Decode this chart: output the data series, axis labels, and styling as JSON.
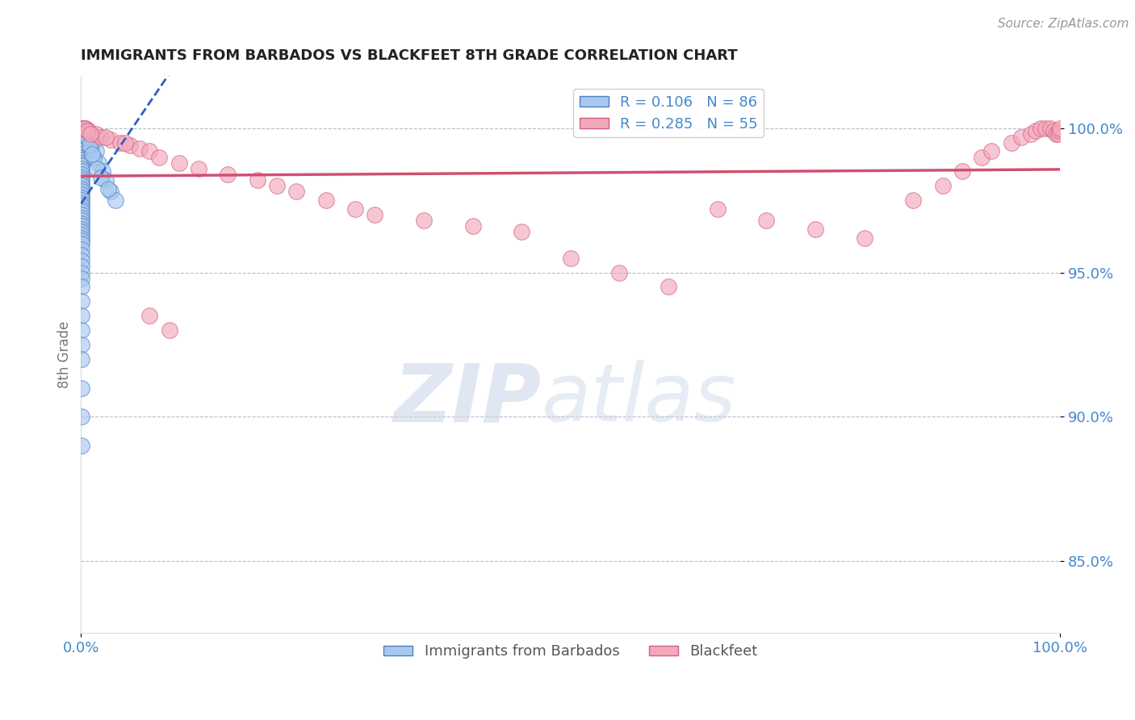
{
  "title": "IMMIGRANTS FROM BARBADOS VS BLACKFEET 8TH GRADE CORRELATION CHART",
  "source": "Source: ZipAtlas.com",
  "ylabel": "8th Grade",
  "x_label_bottom_left": "0.0%",
  "x_label_bottom_right": "100.0%",
  "y_ticks": [
    85.0,
    90.0,
    95.0,
    100.0
  ],
  "y_tick_labels": [
    "85.0%",
    "90.0%",
    "95.0%",
    "100.0%"
  ],
  "x_min": 0.0,
  "x_max": 100.0,
  "y_min": 82.5,
  "y_max": 101.8,
  "legend_blue_label": "Immigrants from Barbados",
  "legend_pink_label": "Blackfeet",
  "R_blue": 0.106,
  "N_blue": 86,
  "R_pink": 0.285,
  "N_pink": 55,
  "blue_color": "#A8C8F0",
  "pink_color": "#F4A8BC",
  "blue_edge_color": "#5080C0",
  "pink_edge_color": "#D06080",
  "blue_line_color": "#3060C0",
  "pink_line_color": "#D05070",
  "watermark_zip_color": "#C8D4E8",
  "watermark_atlas_color": "#C8D4E8",
  "title_color": "#222222",
  "axis_label_color": "#4488CC",
  "blue_scatter_x": [
    0.05,
    0.05,
    0.05,
    0.05,
    0.05,
    0.05,
    0.05,
    0.05,
    0.05,
    0.05,
    0.05,
    0.05,
    0.05,
    0.05,
    0.05,
    0.05,
    0.05,
    0.05,
    0.05,
    0.05,
    0.05,
    0.05,
    0.05,
    0.05,
    0.05,
    0.05,
    0.05,
    0.05,
    0.05,
    0.05,
    0.05,
    0.05,
    0.05,
    0.05,
    0.05,
    0.05,
    0.05,
    0.05,
    0.05,
    0.05,
    0.05,
    0.05,
    0.05,
    0.05,
    0.05,
    0.05,
    0.05,
    0.05,
    0.05,
    0.05,
    0.05,
    0.05,
    0.05,
    0.05,
    0.05,
    0.05,
    0.05,
    0.05,
    0.05,
    0.05,
    0.05,
    0.05,
    0.05,
    0.05,
    0.05,
    0.05,
    0.05,
    0.05,
    0.05,
    0.05,
    1.2,
    1.5,
    1.8,
    2.2,
    2.5,
    3.0,
    3.5,
    0.8,
    1.0,
    1.3,
    1.6,
    2.0,
    2.8,
    0.6,
    0.9,
    1.1
  ],
  "blue_scatter_y": [
    100.0,
    100.0,
    99.9,
    99.9,
    99.8,
    99.8,
    99.7,
    99.7,
    99.6,
    99.6,
    99.5,
    99.5,
    99.4,
    99.4,
    99.3,
    99.3,
    99.2,
    99.2,
    99.1,
    99.1,
    99.0,
    99.0,
    98.9,
    98.9,
    98.8,
    98.8,
    98.7,
    98.7,
    98.6,
    98.5,
    98.4,
    98.3,
    98.2,
    98.1,
    98.0,
    97.9,
    97.8,
    97.7,
    97.6,
    97.5,
    97.4,
    97.3,
    97.2,
    97.1,
    97.0,
    96.9,
    96.8,
    96.7,
    96.6,
    96.5,
    96.4,
    96.3,
    96.2,
    96.1,
    96.0,
    95.8,
    95.6,
    95.4,
    95.2,
    95.0,
    94.8,
    94.5,
    94.0,
    93.5,
    93.0,
    92.5,
    92.0,
    91.0,
    90.0,
    89.0,
    99.5,
    99.2,
    98.8,
    98.5,
    98.2,
    97.8,
    97.5,
    99.6,
    99.3,
    99.0,
    98.6,
    98.3,
    97.9,
    99.7,
    99.4,
    99.1
  ],
  "pink_scatter_x": [
    0.3,
    0.5,
    0.8,
    1.5,
    2.0,
    3.0,
    4.0,
    5.0,
    6.0,
    7.0,
    8.0,
    10.0,
    12.0,
    15.0,
    18.0,
    20.0,
    22.0,
    25.0,
    28.0,
    30.0,
    35.0,
    40.0,
    45.0,
    50.0,
    55.0,
    60.0,
    65.0,
    70.0,
    75.0,
    80.0,
    85.0,
    88.0,
    90.0,
    92.0,
    93.0,
    95.0,
    96.0,
    97.0,
    97.5,
    98.0,
    98.5,
    99.0,
    99.3,
    99.6,
    99.8,
    99.9,
    100.0,
    0.2,
    0.4,
    0.6,
    1.0,
    2.5,
    4.5,
    7.0,
    9.0
  ],
  "pink_scatter_y": [
    100.0,
    100.0,
    99.9,
    99.8,
    99.7,
    99.6,
    99.5,
    99.4,
    99.3,
    99.2,
    99.0,
    98.8,
    98.6,
    98.4,
    98.2,
    98.0,
    97.8,
    97.5,
    97.2,
    97.0,
    96.8,
    96.6,
    96.4,
    95.5,
    95.0,
    94.5,
    97.2,
    96.8,
    96.5,
    96.2,
    97.5,
    98.0,
    98.5,
    99.0,
    99.2,
    99.5,
    99.7,
    99.8,
    99.9,
    100.0,
    100.0,
    100.0,
    99.9,
    99.8,
    99.8,
    99.9,
    100.0,
    100.0,
    100.0,
    99.9,
    99.8,
    99.7,
    99.5,
    93.5,
    93.0
  ]
}
